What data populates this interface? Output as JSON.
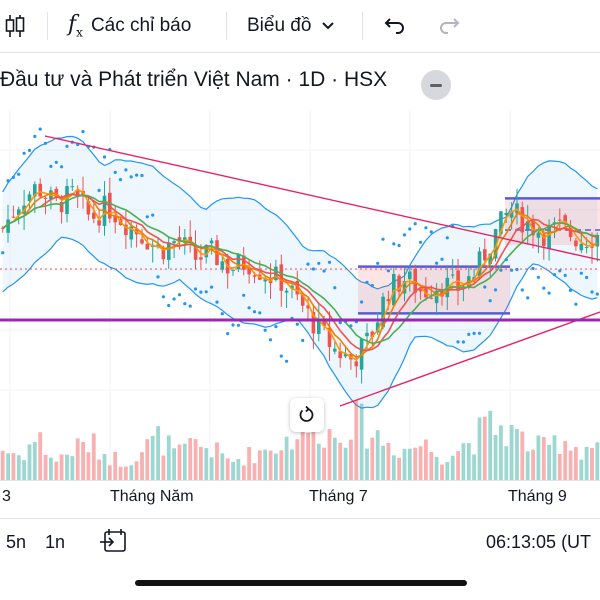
{
  "toolbar": {
    "indicators_label": "Các chỉ báo",
    "chart_type_label": "Biểu đồ"
  },
  "symbol": {
    "title": "Đầu tư và Phát triển Việt Nam · 1D · HSX"
  },
  "x_axis": {
    "labels": [
      "3",
      "Tháng Năm",
      "Tháng 7",
      "Tháng 9"
    ]
  },
  "bottom_bar": {
    "range_5m": "5n",
    "range_1y": "1n",
    "time": "06:13:05 (UT"
  },
  "colors": {
    "up": "#26a69a",
    "down": "#ef5350",
    "bollinger": "#2196f3",
    "trendline": "#e91e63",
    "support": "#9c27b0",
    "range_box": "#5b5bd6",
    "ma_fast": "#ff9800",
    "ma_slow": "#4caf50"
  },
  "chart_data": {
    "type": "candlestick",
    "title": "Đầu tư và Phát triển Việt Nam · 1D · HSX",
    "x_tick_labels": [
      "3",
      "Tháng Năm",
      "Tháng 7",
      "Tháng 9"
    ],
    "close_trend": [
      45.5,
      47.2,
      48.0,
      46.9,
      47.5,
      46.1,
      46.8,
      45.9,
      45.1,
      44.2,
      44.8,
      43.7,
      44.0,
      43.1,
      43.5,
      42.8,
      42.3,
      41.0,
      39.5,
      38.2,
      37.6,
      38.9,
      41.8,
      42.5,
      41.7,
      42.2,
      41.9,
      42.8,
      44.9,
      46.6,
      45.8,
      45.2,
      45.5,
      44.8,
      45.1
    ],
    "volume_trend": [
      0.5,
      0.4,
      0.7,
      0.3,
      0.5,
      0.6,
      0.4,
      0.3,
      0.5,
      0.7,
      0.4,
      0.6,
      0.5,
      0.3,
      0.4,
      0.5,
      0.6,
      0.8,
      0.9,
      0.7,
      1.0,
      0.8,
      0.6,
      0.5,
      0.6,
      0.4,
      0.5,
      0.7,
      0.9,
      0.8,
      0.6,
      0.5,
      0.7,
      0.5,
      0.6
    ],
    "grid": true
  }
}
